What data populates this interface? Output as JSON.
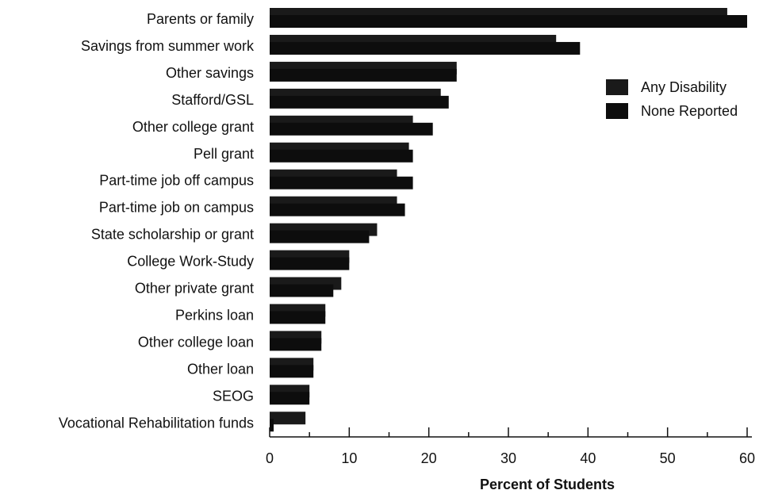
{
  "chart_data": {
    "type": "bar",
    "orientation": "horizontal",
    "title": "",
    "xlabel": "Percent of Students",
    "ylabel": "",
    "xlim": [
      0,
      60
    ],
    "xticks": [
      0,
      10,
      20,
      30,
      40,
      50,
      60
    ],
    "grid": false,
    "legend": "right",
    "categories": [
      "Parents or family",
      "Savings from summer work",
      "Other savings",
      "Stafford/GSL",
      "Other college grant",
      "Pell grant",
      "Part-time job off campus",
      "Part-time job on campus",
      "State scholarship or grant",
      "College Work-Study",
      "Other private grant",
      "Perkins loan",
      "Other college loan",
      "Other loan",
      "SEOG",
      "Vocational Rehabilitation funds"
    ],
    "series": [
      {
        "name": "Any Disability",
        "color": "#1a1a1a",
        "values": [
          57.5,
          36,
          23.5,
          21.5,
          18,
          17.5,
          16,
          16,
          13.5,
          10,
          9,
          7,
          6.5,
          5.5,
          5,
          4.5
        ]
      },
      {
        "name": "None Reported",
        "color": "#0d0d0d",
        "values": [
          60,
          39,
          23.5,
          22.5,
          20.5,
          18,
          18,
          17,
          12.5,
          10,
          8,
          7,
          6.5,
          5.5,
          5,
          0.5
        ]
      }
    ]
  }
}
